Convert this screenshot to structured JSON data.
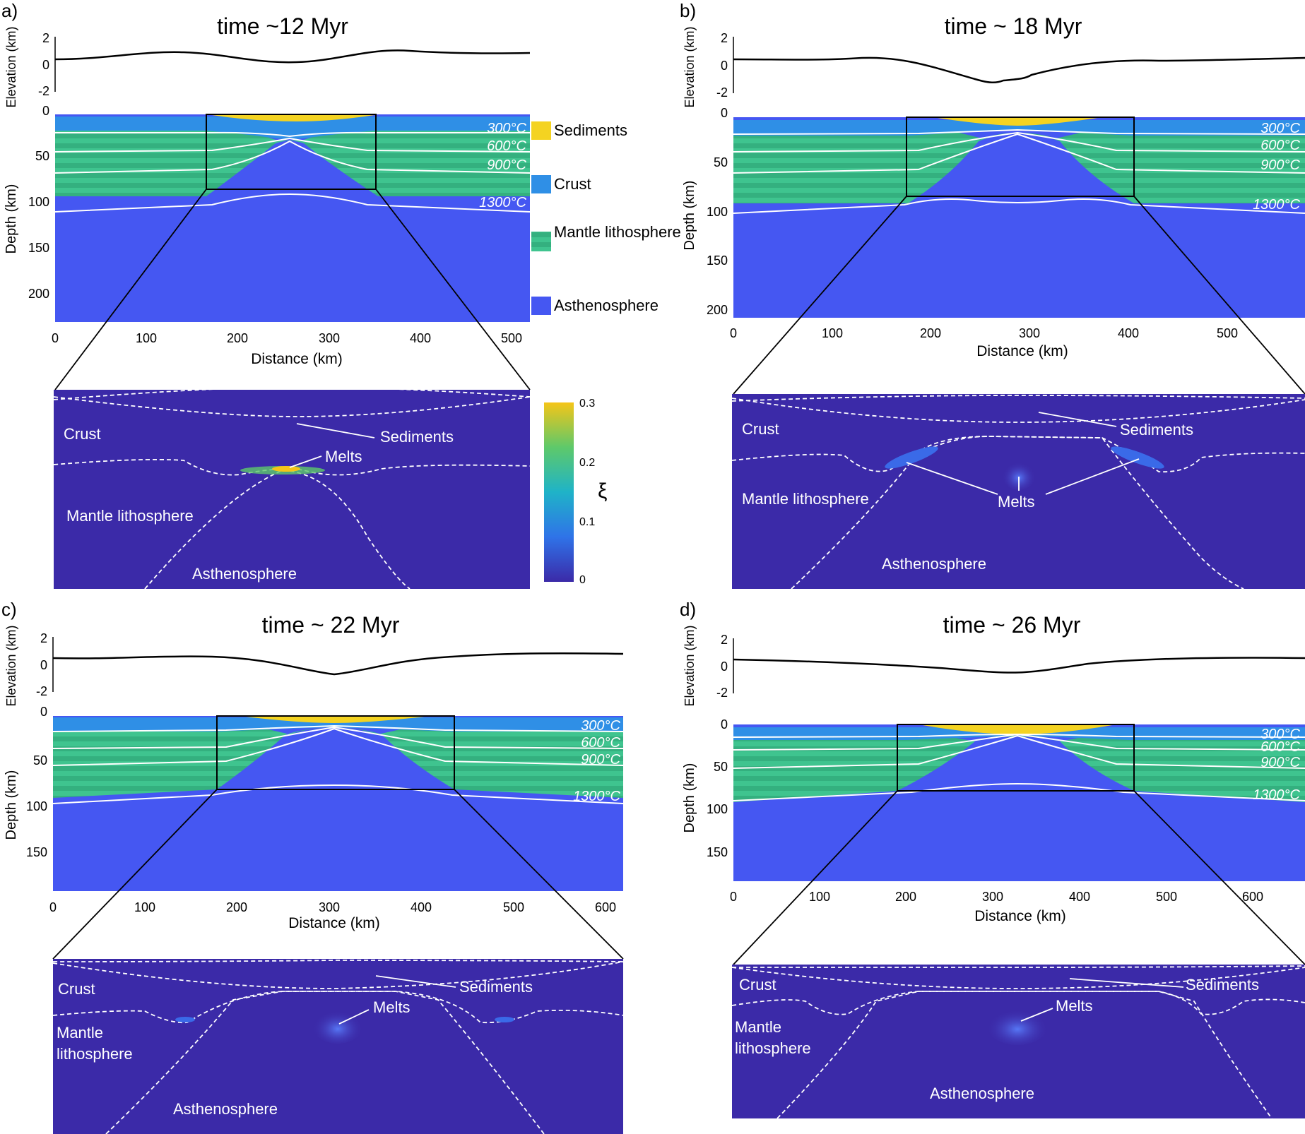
{
  "panels": [
    {
      "label": "a)",
      "title": "time ~12 Myr",
      "elevation_label": "Elevation (km)",
      "elevation_ticks": [
        "2",
        "0",
        "-2"
      ],
      "depth_label": "Depth (km)",
      "depth_ticks": [
        "0",
        "50",
        "100",
        "150",
        "200"
      ],
      "x_label": "Distance (km)",
      "x_ticks": [
        "0",
        "100",
        "200",
        "300",
        "400",
        "500"
      ],
      "isotherms": [
        "300°C",
        "600°C",
        "900°C",
        "1300°C"
      ],
      "zoom_labels": {
        "crust": "Crust",
        "sediments": "Sediments",
        "melts": "Melts",
        "mantle": "Mantle lithosphere",
        "asthenosphere": "Asthenosphere"
      }
    },
    {
      "label": "b)",
      "title": "time ~ 18 Myr",
      "elevation_label": "Elevation (km)",
      "elevation_ticks": [
        "2",
        "0",
        "-2"
      ],
      "depth_label": "Depth (km)",
      "depth_ticks": [
        "0",
        "50",
        "100",
        "150",
        "200"
      ],
      "x_label": "Distance (km)",
      "x_ticks": [
        "0",
        "100",
        "200",
        "300",
        "400",
        "500"
      ],
      "isotherms": [
        "300°C",
        "600°C",
        "900°C",
        "1300°C"
      ],
      "zoom_labels": {
        "crust": "Crust",
        "sediments": "Sediments",
        "melts": "Melts",
        "mantle": "Mantle lithosphere",
        "asthenosphere": "Asthenosphere"
      }
    },
    {
      "label": "c)",
      "title": "time ~ 22 Myr",
      "elevation_label": "Elevation (km)",
      "elevation_ticks": [
        "2",
        "0",
        "-2"
      ],
      "depth_label": "Depth (km)",
      "depth_ticks": [
        "0",
        "50",
        "100",
        "150"
      ],
      "x_label": "Distance (km)",
      "x_ticks": [
        "0",
        "100",
        "200",
        "300",
        "400",
        "500",
        "600"
      ],
      "isotherms": [
        "300°C",
        "600°C",
        "900°C",
        "1300°C"
      ],
      "zoom_labels": {
        "crust": "Crust",
        "sediments": "Sediments",
        "melts": "Melts",
        "mantle": "Mantle lithosphere",
        "asthenosphere": "Asthenosphere"
      }
    },
    {
      "label": "d)",
      "title": "time ~ 26 Myr",
      "elevation_label": "Elevation (km)",
      "elevation_ticks": [
        "2",
        "0",
        "-2"
      ],
      "depth_label": "Depth (km)",
      "depth_ticks": [
        "0",
        "50",
        "100",
        "150"
      ],
      "x_label": "Distance (km)",
      "x_ticks": [
        "0",
        "100",
        "200",
        "300",
        "400",
        "500",
        "600"
      ],
      "isotherms": [
        "300°C",
        "600°C",
        "900°C",
        "1300°C"
      ],
      "zoom_labels": {
        "crust": "Crust",
        "sediments": "Sediments",
        "melts": "Melts",
        "mantle": "Mantle lithosphere",
        "asthenosphere": "Asthenosphere"
      }
    }
  ],
  "legend": {
    "items": [
      {
        "label": "Sediments",
        "color": "#f4d321"
      },
      {
        "label": "Crust",
        "color": "#2f8fe6"
      },
      {
        "label": "Mantle lithosphere",
        "color": "#3fc48f"
      },
      {
        "label": "Asthenosphere",
        "color": "#4557f2"
      }
    ]
  },
  "colorbar": {
    "symbol": "ξ",
    "ticks": [
      "0.3",
      "0.2",
      "0.1",
      "0"
    ],
    "colors": [
      "#3b2aa8",
      "#2f73e8",
      "#1fb3c8",
      "#5ec96a",
      "#f5c518"
    ]
  },
  "colors": {
    "asthenosphere": "#4557f2",
    "mantle_green": "#3fc48f",
    "mantle_green_alt": "#33b27b",
    "crust": "#2f8fe6",
    "sediments": "#f4d321",
    "zoom_bg": "#3b2aa8",
    "melt": "#3a6ae8"
  },
  "chart_data": [
    {
      "type": "heatmap",
      "title": "time ~12 Myr",
      "xlabel": "Distance (km)",
      "ylabel": "Depth (km)",
      "xlim": [
        0,
        520
      ],
      "ylim": [
        230,
        0
      ],
      "rift_center_km": 260,
      "x_ticks": [
        0,
        100,
        200,
        300,
        400,
        500
      ],
      "isotherms_C": [
        300,
        600,
        900,
        1300
      ],
      "elevation": {
        "ylabel": "Elevation (km)",
        "ylim": [
          -2,
          2
        ],
        "x": [
          0,
          60,
          140,
          200,
          260,
          300,
          350,
          400,
          450,
          520
        ],
        "y": [
          0.6,
          0.7,
          1.0,
          0.7,
          0.3,
          0.4,
          0.9,
          1.2,
          1.0,
          1.0
        ]
      }
    },
    {
      "type": "heatmap",
      "title": "time ~ 18 Myr",
      "xlabel": "Distance (km)",
      "ylabel": "Depth (km)",
      "xlim": [
        0,
        580
      ],
      "ylim": [
        210,
        0
      ],
      "rift_center_km": 290,
      "x_ticks": [
        0,
        100,
        200,
        300,
        400,
        500
      ],
      "isotherms_C": [
        300,
        600,
        900,
        1300
      ],
      "elevation": {
        "ylabel": "Elevation (km)",
        "ylim": [
          -2,
          2
        ],
        "x": [
          0,
          100,
          150,
          220,
          270,
          290,
          320,
          380,
          450,
          520,
          580
        ],
        "y": [
          0.5,
          0.3,
          0.6,
          -0.3,
          -1.6,
          -1.3,
          -0.6,
          0.2,
          0.5,
          0.5,
          0.6
        ]
      }
    },
    {
      "type": "heatmap",
      "title": "time ~ 22 Myr",
      "xlabel": "Distance (km)",
      "ylabel": "Depth (km)",
      "xlim": [
        0,
        620
      ],
      "ylim": [
        190,
        0
      ],
      "rift_center_km": 305,
      "x_ticks": [
        0,
        100,
        200,
        300,
        400,
        500,
        600
      ],
      "isotherms_C": [
        300,
        600,
        900,
        1300
      ],
      "elevation": {
        "ylabel": "Elevation (km)",
        "ylim": [
          -2,
          2
        ],
        "x": [
          0,
          100,
          170,
          250,
          305,
          370,
          450,
          520,
          620
        ],
        "y": [
          0.6,
          0.5,
          0.7,
          0.0,
          -0.8,
          0.0,
          0.6,
          1.0,
          1.0
        ]
      }
    },
    {
      "type": "heatmap",
      "title": "time ~ 26 Myr",
      "xlabel": "Distance (km)",
      "ylabel": "Depth (km)",
      "xlim": [
        0,
        660
      ],
      "ylim": [
        180,
        0
      ],
      "rift_center_km": 330,
      "x_ticks": [
        0,
        100,
        200,
        300,
        400,
        500,
        600
      ],
      "isotherms_C": [
        300,
        600,
        900,
        1300
      ],
      "elevation": {
        "ylabel": "Elevation (km)",
        "ylim": [
          -2,
          2
        ],
        "x": [
          0,
          100,
          200,
          280,
          330,
          380,
          450,
          550,
          660
        ],
        "y": [
          0.5,
          0.3,
          0.1,
          -0.4,
          -0.6,
          -0.3,
          0.2,
          0.4,
          0.5
        ]
      }
    }
  ]
}
